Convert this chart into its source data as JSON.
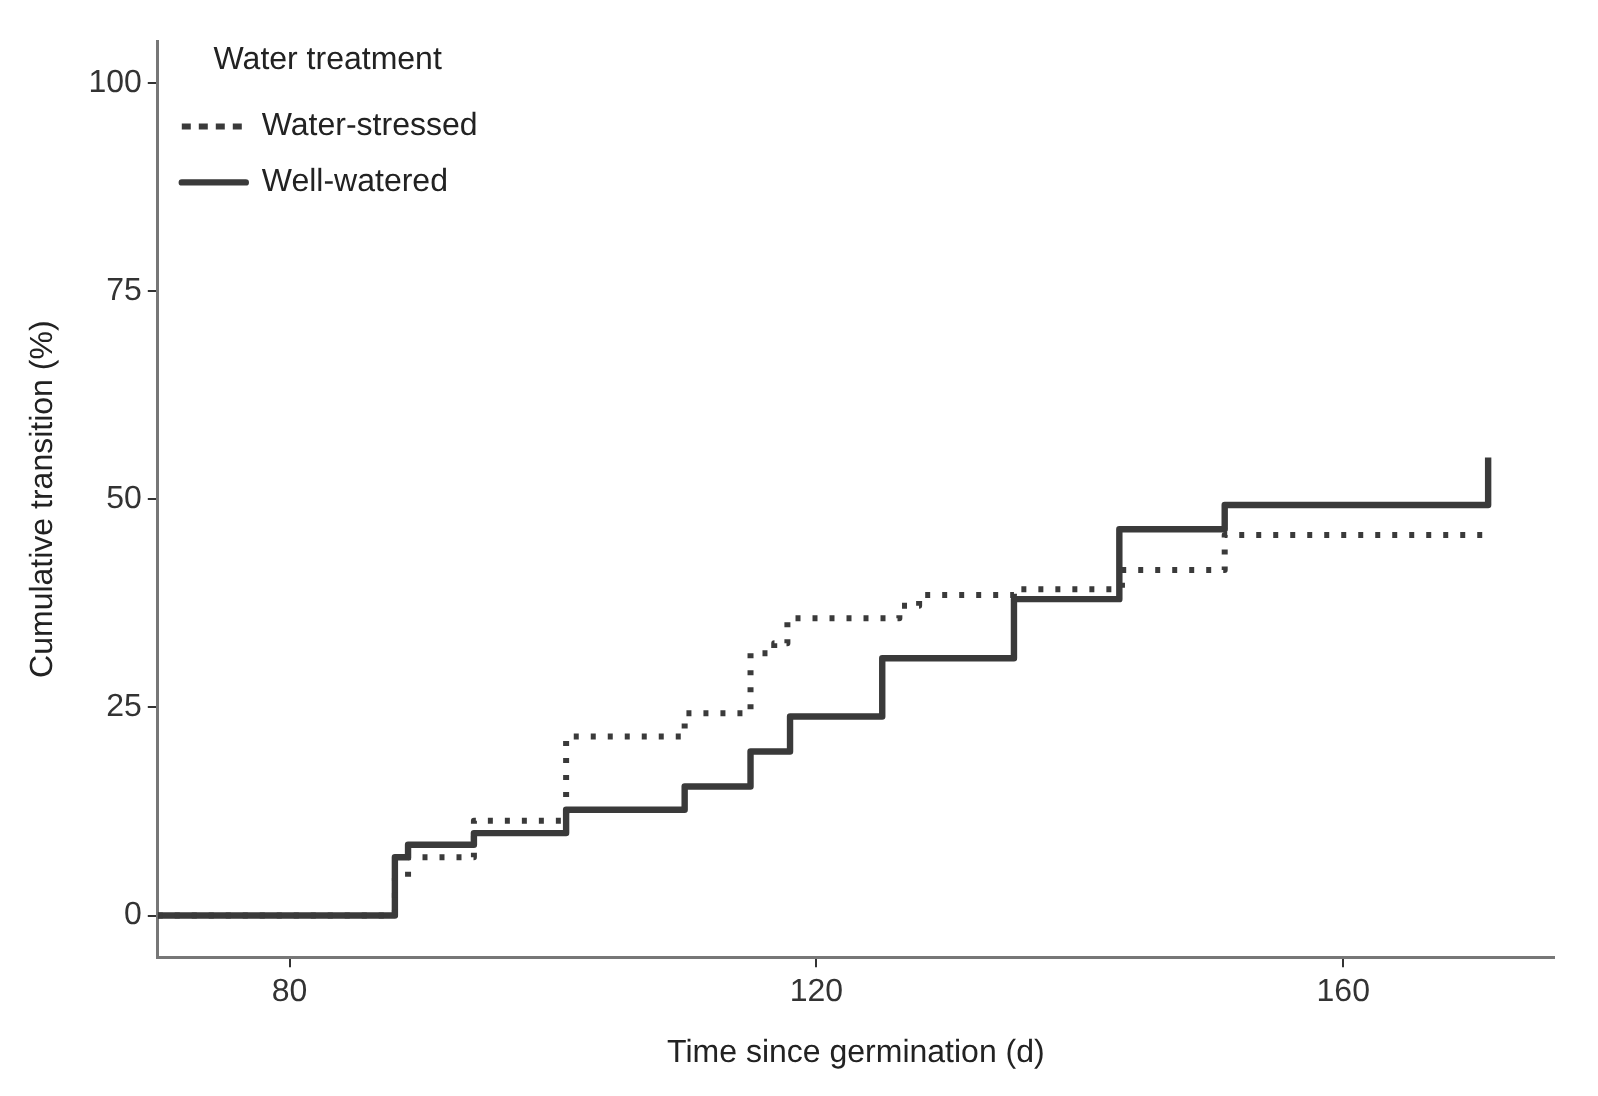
{
  "chart_data": {
    "type": "step",
    "xlabel": "Time since germination (d)",
    "ylabel": "Cumulative transition (%)",
    "legend_title": "Water treatment",
    "legend": "top left",
    "grid": false,
    "xlim": [
      70,
      176
    ],
    "ylim": [
      -5,
      105
    ],
    "xticks": [
      80,
      120,
      160
    ],
    "yticks": [
      0,
      25,
      50,
      75,
      100
    ],
    "series": [
      {
        "name": "Water-stressed",
        "color": "#3a3a3a",
        "line_style": "dotted",
        "x": [
          70,
          88,
          89,
          94,
          101,
          110,
          115,
          116.8,
          117.8,
          126.3,
          127.8,
          135,
          143.2,
          151,
          171
        ],
        "values": [
          0,
          4.5,
          7.0,
          11.4,
          21.5,
          24.3,
          31.5,
          32.7,
          35.7,
          37.2,
          38.5,
          39.2,
          41.5,
          45.7,
          45.7
        ]
      },
      {
        "name": "Well-watered",
        "color": "#3a3a3a",
        "line_style": "solid",
        "x": [
          70,
          88,
          89,
          94,
          101,
          110,
          115,
          118,
          125,
          135,
          143,
          151,
          171
        ],
        "values": [
          0,
          7.0,
          8.5,
          9.9,
          12.7,
          15.5,
          19.7,
          23.9,
          30.9,
          38.0,
          46.4,
          49.3,
          55.0
        ]
      }
    ]
  }
}
